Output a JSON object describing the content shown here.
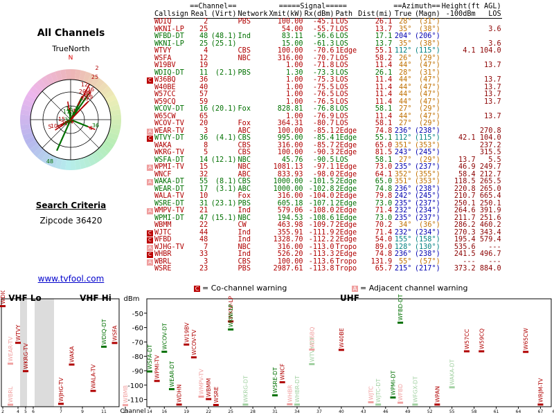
{
  "left": {
    "title": "All Channels",
    "compass_label": "TrueNorth",
    "compass_n": "N",
    "criteria_label": "Search Criteria",
    "zipcode": "Zipcode 36420",
    "site_link": "www.tvfool.com"
  },
  "table": {
    "group_headers": {
      "channel": "==Channel==",
      "signal": "=====Signal=====",
      "azimuth": "==Azimuth==",
      "height": "Height(ft AGL)"
    },
    "columns": [
      "Callsign",
      "Real",
      "(Virt)",
      "Network",
      "Xmit(kW)",
      "Rx(dBm)",
      "Path",
      "Dist(mi)",
      "True",
      "(Magn)",
      "-100dBm",
      "LOS"
    ],
    "rows": [
      {
        "callsign": "WDIQ",
        "real": "2",
        "virt": "",
        "network": "PBS",
        "xmit": "100.00",
        "rx": "-45.1",
        "path": "LOS",
        "dist": "26.1",
        "true": "28°",
        "magn": "(31°)",
        "h100": "",
        "los": "",
        "color": "#b00000",
        "mark": ""
      },
      {
        "callsign": "WKNI-LP",
        "real": "25",
        "virt": "",
        "network": "",
        "xmit": "54.00",
        "rx": "-55.7",
        "path": "LOS",
        "dist": "13.7",
        "true": "35°",
        "magn": "(38°)",
        "h100": "",
        "los": "3.6",
        "color": "#b00000",
        "mark": ""
      },
      {
        "callsign": "WFBD-DT",
        "real": "48",
        "virt": "(48.1)",
        "network": "Ind",
        "xmit": "83.11",
        "rx": "-56.6",
        "path": "LOS",
        "dist": "17.1",
        "true": "204°",
        "magn": "(206°)",
        "h100": "",
        "los": "",
        "color": "#007000",
        "mark": ""
      },
      {
        "callsign": "WKNI-LP",
        "real": "25",
        "virt": "(25.1)",
        "network": "",
        "xmit": "15.00",
        "rx": "-61.3",
        "path": "LOS",
        "dist": "13.7",
        "true": "35°",
        "magn": "(38°)",
        "h100": "",
        "los": "3.6",
        "color": "#007000",
        "mark": ""
      },
      {
        "callsign": "WTVY",
        "real": "4",
        "virt": "",
        "network": "CBS",
        "xmit": "100.00",
        "rx": "-70.6",
        "path": "1Edge",
        "dist": "55.1",
        "true": "112°",
        "magn": "(115°)",
        "h100": "4.1",
        "los": "104.0",
        "color": "#b00000",
        "mark": ""
      },
      {
        "callsign": "WSFA",
        "real": "12",
        "virt": "",
        "network": "NBC",
        "xmit": "316.00",
        "rx": "-70.7",
        "path": "LOS",
        "dist": "58.2",
        "true": "26°",
        "magn": "(29°)",
        "h100": "",
        "los": "",
        "color": "#b00000",
        "mark": ""
      },
      {
        "callsign": "W19BV",
        "real": "19",
        "virt": "",
        "network": "",
        "xmit": "1.00",
        "rx": "-71.8",
        "path": "LOS",
        "dist": "11.4",
        "true": "44°",
        "magn": "(47°)",
        "h100": "",
        "los": "13.7",
        "color": "#b00000",
        "mark": ""
      },
      {
        "callsign": "WDIQ-DT",
        "real": "11",
        "virt": "(2.1)",
        "network": "PBS",
        "xmit": "1.30",
        "rx": "-73.3",
        "path": "LOS",
        "dist": "26.1",
        "true": "28°",
        "magn": "(31°)",
        "h100": "",
        "los": "",
        "color": "#007000",
        "mark": ""
      },
      {
        "callsign": "W36BQ",
        "real": "36",
        "virt": "",
        "network": "",
        "xmit": "1.00",
        "rx": "-75.3",
        "path": "LOS",
        "dist": "11.4",
        "true": "44°",
        "magn": "(47°)",
        "h100": "",
        "los": "13.7",
        "color": "#b00000",
        "mark": "C"
      },
      {
        "callsign": "W40BE",
        "real": "40",
        "virt": "",
        "network": "",
        "xmit": "1.00",
        "rx": "-75.5",
        "path": "LOS",
        "dist": "11.4",
        "true": "44°",
        "magn": "(47°)",
        "h100": "",
        "los": "13.7",
        "color": "#b00000",
        "mark": ""
      },
      {
        "callsign": "W57CC",
        "real": "57",
        "virt": "",
        "network": "",
        "xmit": "1.00",
        "rx": "-76.5",
        "path": "LOS",
        "dist": "11.4",
        "true": "44°",
        "magn": "(47°)",
        "h100": "",
        "los": "13.7",
        "color": "#b00000",
        "mark": ""
      },
      {
        "callsign": "W59CQ",
        "real": "59",
        "virt": "",
        "network": "",
        "xmit": "1.00",
        "rx": "-76.5",
        "path": "LOS",
        "dist": "11.4",
        "true": "44°",
        "magn": "(47°)",
        "h100": "",
        "los": "13.7",
        "color": "#b00000",
        "mark": ""
      },
      {
        "callsign": "WCOV-DT",
        "real": "16",
        "virt": "(20.1)",
        "network": "Fox",
        "xmit": "828.81",
        "rx": "-76.8",
        "path": "LOS",
        "dist": "58.1",
        "true": "27°",
        "magn": "(29°)",
        "h100": "",
        "los": "",
        "color": "#007000",
        "mark": ""
      },
      {
        "callsign": "W65CW",
        "real": "65",
        "virt": "",
        "network": "",
        "xmit": "1.00",
        "rx": "-76.9",
        "path": "LOS",
        "dist": "11.4",
        "true": "44°",
        "magn": "(47°)",
        "h100": "",
        "los": "13.7",
        "color": "#b00000",
        "mark": ""
      },
      {
        "callsign": "WCOV-TV",
        "real": "20",
        "virt": "",
        "network": "Fox",
        "xmit": "364.31",
        "rx": "-80.7",
        "path": "LOS",
        "dist": "58.1",
        "true": "27°",
        "magn": "(29°)",
        "h100": "",
        "los": "",
        "color": "#b00000",
        "mark": ""
      },
      {
        "callsign": "WEAR-TV",
        "real": "3",
        "virt": "",
        "network": "ABC",
        "xmit": "100.00",
        "rx": "-85.1",
        "path": "2Edge",
        "dist": "74.8",
        "true": "236°",
        "magn": "(238°)",
        "h100": "",
        "los": "270.8",
        "color": "#b00000",
        "mark": "A"
      },
      {
        "callsign": "WTVY-DT",
        "real": "36",
        "virt": "(4.1)",
        "network": "CBS",
        "xmit": "995.00",
        "rx": "-85.4",
        "path": "1Edge",
        "dist": "55.1",
        "true": "112°",
        "magn": "(115°)",
        "h100": "42.1",
        "los": "104.0",
        "color": "#007000",
        "mark": "C"
      },
      {
        "callsign": "WAKA",
        "real": "8",
        "virt": "",
        "network": "CBS",
        "xmit": "316.00",
        "rx": "-85.7",
        "path": "2Edge",
        "dist": "65.0",
        "true": "351°",
        "magn": "(353°)",
        "h100": "",
        "los": "237.2",
        "color": "#b00000",
        "mark": ""
      },
      {
        "callsign": "WKRG-TV",
        "real": "5",
        "virt": "",
        "network": "CBS",
        "xmit": "100.00",
        "rx": "-90.3",
        "path": "2Edge",
        "dist": "81.5",
        "true": "243°",
        "magn": "(245°)",
        "h100": "",
        "los": "315.5",
        "color": "#b00000",
        "mark": ""
      },
      {
        "callsign": "WSFA-DT",
        "real": "14",
        "virt": "(12.1)",
        "network": "NBC",
        "xmit": "45.76",
        "rx": "-90.5",
        "path": "LOS",
        "dist": "58.1",
        "true": "27°",
        "magn": "(29°)",
        "h100": "13.7",
        "los": "5.5",
        "color": "#007000",
        "mark": ""
      },
      {
        "callsign": "WPMI-TV",
        "real": "15",
        "virt": "",
        "network": "NBC",
        "xmit": "1081.13",
        "rx": "-97.1",
        "path": "1Edge",
        "dist": "73.0",
        "true": "235°",
        "magn": "(237°)",
        "h100": "46.9",
        "los": "249.7",
        "color": "#b00000",
        "mark": "A"
      },
      {
        "callsign": "WNCF",
        "real": "32",
        "virt": "",
        "network": "ABC",
        "xmit": "833.93",
        "rx": "-98.0",
        "path": "2Edge",
        "dist": "64.1",
        "true": "352°",
        "magn": "(355°)",
        "h100": "58.4",
        "los": "212.7",
        "color": "#b00000",
        "mark": ""
      },
      {
        "callsign": "WAKA-DT",
        "real": "55",
        "virt": "(8.1)",
        "network": "CBS",
        "xmit": "1000.00",
        "rx": "-101.5",
        "path": "2Edge",
        "dist": "65.0",
        "true": "351°",
        "magn": "(353°)",
        "h100": "118.5",
        "los": "265.5",
        "color": "#007000",
        "mark": "A"
      },
      {
        "callsign": "WEAR-DT",
        "real": "17",
        "virt": "(3.1)",
        "network": "ABC",
        "xmit": "1000.00",
        "rx": "-102.8",
        "path": "2Edge",
        "dist": "74.8",
        "true": "236°",
        "magn": "(238°)",
        "h100": "220.8",
        "los": "265.0",
        "color": "#007000",
        "mark": ""
      },
      {
        "callsign": "WALA-TV",
        "real": "10",
        "virt": "",
        "network": "Fox",
        "xmit": "316.00",
        "rx": "-104.0",
        "path": "2Edge",
        "dist": "79.8",
        "true": "242°",
        "magn": "(245°)",
        "h100": "210.7",
        "los": "665.4",
        "color": "#b00000",
        "mark": ""
      },
      {
        "callsign": "WSRE-DT",
        "real": "31",
        "virt": "(23.1)",
        "network": "PBS",
        "xmit": "605.18",
        "rx": "-107.1",
        "path": "2Edge",
        "dist": "73.0",
        "true": "235°",
        "magn": "(237°)",
        "h100": "250.1",
        "los": "250.1",
        "color": "#007000",
        "mark": ""
      },
      {
        "callsign": "WMPV-TV",
        "real": "21",
        "virt": "",
        "network": "Ind",
        "xmit": "579.06",
        "rx": "-108.0",
        "path": "2Edge",
        "dist": "71.4",
        "true": "232°",
        "magn": "(234°)",
        "h100": "264.6",
        "los": "391.9",
        "color": "#b00000",
        "mark": "A"
      },
      {
        "callsign": "WPMI-DT",
        "real": "47",
        "virt": "(15.1)",
        "network": "NBC",
        "xmit": "194.53",
        "rx": "-108.6",
        "path": "1Edge",
        "dist": "73.0",
        "true": "235°",
        "magn": "(237°)",
        "h100": "211.7",
        "los": "251.6",
        "color": "#007000",
        "mark": ""
      },
      {
        "callsign": "WBMM",
        "real": "22",
        "virt": "",
        "network": "CW",
        "xmit": "463.98",
        "rx": "-109.7",
        "path": "2Edge",
        "dist": "70.2",
        "true": "34°",
        "magn": "(36°)",
        "h100": "286.2",
        "los": "460.2",
        "color": "#b00000",
        "mark": ""
      },
      {
        "callsign": "WJTC",
        "real": "44",
        "virt": "",
        "network": "Ind",
        "xmit": "355.91",
        "rx": "-111.9",
        "path": "2Edge",
        "dist": "71.4",
        "true": "232°",
        "magn": "(234°)",
        "h100": "270.3",
        "los": "343.4",
        "color": "#b00000",
        "mark": "C"
      },
      {
        "callsign": "WFBD",
        "real": "48",
        "virt": "",
        "network": "Ind",
        "xmit": "1328.70",
        "rx": "-112.2",
        "path": "2Edge",
        "dist": "54.0",
        "true": "155°",
        "magn": "(158°)",
        "h100": "195.4",
        "los": "579.4",
        "color": "#b00000",
        "mark": "C"
      },
      {
        "callsign": "WJHG-TV",
        "real": "7",
        "virt": "",
        "network": "NBC",
        "xmit": "316.00",
        "rx": "-113.0",
        "path": "Tropo",
        "dist": "89.0",
        "true": "128°",
        "magn": "(130°)",
        "h100": "535.6",
        "los": "---",
        "color": "#b00000",
        "mark": "A"
      },
      {
        "callsign": "WHBR",
        "real": "33",
        "virt": "",
        "network": "Ind",
        "xmit": "526.20",
        "rx": "-113.3",
        "path": "2Edge",
        "dist": "74.8",
        "true": "236°",
        "magn": "(238°)",
        "h100": "241.5",
        "los": "496.7",
        "color": "#b00000",
        "mark": "C"
      },
      {
        "callsign": "WBRL",
        "real": "3",
        "virt": "",
        "network": "CBS",
        "xmit": "100.00",
        "rx": "-113.6",
        "path": "Tropo",
        "dist": "131.9",
        "true": "55°",
        "magn": "(57°)",
        "h100": "---",
        "los": "---",
        "color": "#b00000",
        "mark": "A"
      },
      {
        "callsign": "WSRE",
        "real": "23",
        "virt": "",
        "network": "PBS",
        "xmit": "2987.61",
        "rx": "-113.8",
        "path": "Tropo",
        "dist": "65.7",
        "true": "215°",
        "magn": "(217°)",
        "h100": "373.2",
        "los": "884.0",
        "color": "#b00000",
        "mark": ""
      }
    ]
  },
  "warnings": {
    "co_icon": "C",
    "co_label": "= Co-channel warning",
    "adj_icon": "A",
    "adj_label": "= Adjacent channel warning"
  },
  "spectrum": {
    "vhf_lo_label": "VHF Lo",
    "vhf_hi_label": "VHF Hi",
    "uhf_label": "UHF",
    "dbm_label": "dBm",
    "channel_label": "Channel",
    "y_ticks": [
      -50,
      -60,
      -70,
      -80,
      -90,
      -100,
      -110
    ]
  },
  "chart_data": {
    "type": "bar",
    "title": "",
    "xlabel": "Channel",
    "ylabel": "dBm",
    "ylim": [
      -115,
      -40
    ],
    "x_ticks": [
      2,
      4,
      5,
      6,
      7,
      9,
      11,
      13,
      14,
      16,
      19,
      22,
      25,
      28,
      31,
      34,
      37,
      40,
      43,
      46,
      49,
      52,
      55,
      58,
      61,
      64,
      67,
      69
    ],
    "stations": [
      {
        "name": "WDIQ",
        "channel": 2,
        "dbm": -45.1,
        "color": "#b00000"
      },
      {
        "name": "WEAR-TV",
        "channel": 3,
        "dbm": -85.1,
        "color": "#f0a0a0"
      },
      {
        "name": "WBRL",
        "channel": 3,
        "dbm": -113.6,
        "color": "#f0a0a0"
      },
      {
        "name": "WTVY",
        "channel": 4,
        "dbm": -70.6,
        "color": "#b00000"
      },
      {
        "name": "WKRG-TV",
        "channel": 5,
        "dbm": -90.3,
        "color": "#b00000"
      },
      {
        "name": "WJHG-TV",
        "channel": 7,
        "dbm": -113.0,
        "color": "#b00000"
      },
      {
        "name": "WAKA",
        "channel": 8,
        "dbm": -85.7,
        "color": "#b00000"
      },
      {
        "name": "WALA-TV",
        "channel": 10,
        "dbm": -104.0,
        "color": "#b00000"
      },
      {
        "name": "WDIQ-DT",
        "channel": 11,
        "dbm": -73.3,
        "color": "#007000"
      },
      {
        "name": "WSFA",
        "channel": 12,
        "dbm": -70.7,
        "color": "#b00000"
      },
      {
        "name": "WBMB",
        "channel": 13,
        "dbm": -113.9,
        "color": "#f0a0a0"
      },
      {
        "name": "WSFA-DT",
        "channel": 14,
        "dbm": -90.5,
        "color": "#007000"
      },
      {
        "name": "WPMI-TV",
        "channel": 15,
        "dbm": -97.1,
        "color": "#b00000"
      },
      {
        "name": "WCOV-DT",
        "channel": 16,
        "dbm": -76.8,
        "color": "#007000"
      },
      {
        "name": "WEAR-DT",
        "channel": 17,
        "dbm": -102.8,
        "color": "#007000"
      },
      {
        "name": "WDHN",
        "channel": 18,
        "dbm": -113.5,
        "color": "#b00000"
      },
      {
        "name": "W19BV",
        "channel": 19,
        "dbm": -71.8,
        "color": "#b00000"
      },
      {
        "name": "WCOV-TV",
        "channel": 20,
        "dbm": -80.7,
        "color": "#b00000"
      },
      {
        "name": "WMPV-TV",
        "channel": 21,
        "dbm": -108.0,
        "color": "#f0a0a0"
      },
      {
        "name": "WBMM",
        "channel": 22,
        "dbm": -109.7,
        "color": "#b00000"
      },
      {
        "name": "WSRE",
        "channel": 23,
        "dbm": -113.8,
        "color": "#b00000"
      },
      {
        "name": "WKNI-LP",
        "channel": 25,
        "dbm": -55.7,
        "color": "#b00000"
      },
      {
        "name": "WKNI-LP",
        "channel": 25,
        "dbm": -61.3,
        "color": "#007000"
      },
      {
        "name": "WKRG-DT",
        "channel": 27,
        "dbm": -113.5,
        "color": "#a0d0a0"
      },
      {
        "name": "WSRE-DT",
        "channel": 31,
        "dbm": -107.1,
        "color": "#007000"
      },
      {
        "name": "WNCF",
        "channel": 32,
        "dbm": -98.0,
        "color": "#b00000"
      },
      {
        "name": "WHBR",
        "channel": 33,
        "dbm": -113.3,
        "color": "#f0a0a0"
      },
      {
        "name": "WHBR-DT",
        "channel": 34,
        "dbm": -113.5,
        "color": "#a0d0a0"
      },
      {
        "name": "WTVY-DT",
        "channel": 36,
        "dbm": -85.4,
        "color": "#a0d0a0"
      },
      {
        "name": "W36BQ",
        "channel": 36,
        "dbm": -75.3,
        "color": "#f0a0a0"
      },
      {
        "name": "W40BE",
        "channel": 40,
        "dbm": -75.5,
        "color": "#b00000"
      },
      {
        "name": "WJTC",
        "channel": 44,
        "dbm": -111.9,
        "color": "#f0a0a0"
      },
      {
        "name": "WJTC-DT",
        "channel": 45,
        "dbm": -113.5,
        "color": "#a0d0a0"
      },
      {
        "name": "WPMI-DT",
        "channel": 47,
        "dbm": -108.6,
        "color": "#007000"
      },
      {
        "name": "WFBD-DT",
        "channel": 48,
        "dbm": -56.6,
        "color": "#007000"
      },
      {
        "name": "WFBD",
        "channel": 48,
        "dbm": -112.2,
        "color": "#f0a0a0"
      },
      {
        "name": "WFGX-DT",
        "channel": 50,
        "dbm": -113.5,
        "color": "#a0d0a0"
      },
      {
        "name": "WPAN",
        "channel": 53,
        "dbm": -113.5,
        "color": "#b00000"
      },
      {
        "name": "WAKA-DT",
        "channel": 55,
        "dbm": -101.5,
        "color": "#a0d0a0"
      },
      {
        "name": "W57CC",
        "channel": 57,
        "dbm": -76.5,
        "color": "#b00000"
      },
      {
        "name": "W59CQ",
        "channel": 59,
        "dbm": -76.5,
        "color": "#b00000"
      },
      {
        "name": "W65CW",
        "channel": 65,
        "dbm": -76.9,
        "color": "#b00000"
      },
      {
        "name": "WRJM-TV",
        "channel": 67,
        "dbm": -113.5,
        "color": "#b00000"
      }
    ],
    "radar_labels": [
      "2",
      "25",
      "12",
      "20",
      "19",
      "40",
      "36",
      "57",
      "65",
      "59",
      "14",
      "16",
      "11",
      "3",
      "17",
      "31",
      "47",
      "15",
      "21",
      "10",
      "5",
      "4",
      "36",
      "48"
    ]
  }
}
